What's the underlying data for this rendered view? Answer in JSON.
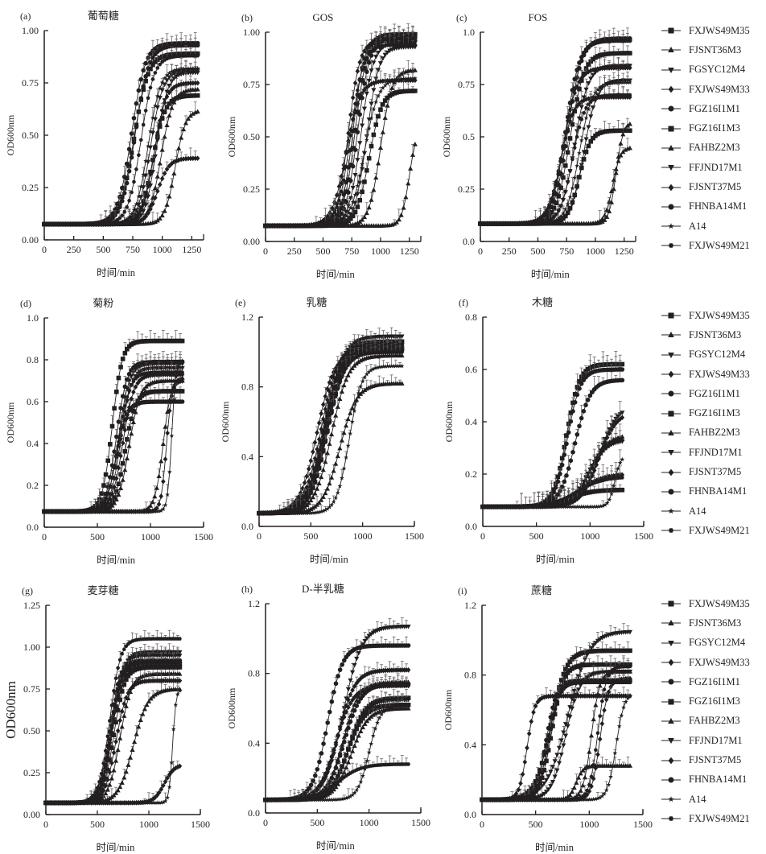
{
  "figure": {
    "legend_entries": [
      {
        "name": "FXJWS49M35",
        "marker": "square"
      },
      {
        "name": "FJSNT36M3",
        "marker": "triangle-up"
      },
      {
        "name": "FGSYC12M4",
        "marker": "triangle-down"
      },
      {
        "name": "FXJWS49M33",
        "marker": "diamond"
      },
      {
        "name": "FGZ16I1M1",
        "marker": "circle"
      },
      {
        "name": "FGZ16I1M3",
        "marker": "square"
      },
      {
        "name": "FAHBZ2M3",
        "marker": "triangle-up"
      },
      {
        "name": "FFJND17M1",
        "marker": "triangle-down"
      },
      {
        "name": "FJSNT37M5",
        "marker": "diamond"
      },
      {
        "name": "FHNBA14M1",
        "marker": "circle"
      },
      {
        "name": "A14",
        "marker": "star"
      },
      {
        "name": "FXJWS49M21",
        "marker": "hexagon"
      }
    ]
  },
  "chart_data": [
    {
      "type": "line",
      "panel": "(a)",
      "title": "葡萄糖",
      "xlabel": "时间/min",
      "ylabel": "OD600nm",
      "xlim": [
        0,
        1350
      ],
      "ylim": [
        0,
        1.0
      ],
      "xticks": [
        0,
        250,
        500,
        750,
        1000,
        1250
      ],
      "xtick_labels": [
        "0",
        "250",
        "500",
        "750",
        "1000",
        "1250"
      ],
      "yticks": [
        0,
        0.25,
        0.5,
        0.75,
        1.0
      ],
      "ytick_labels": [
        "0.00",
        "0.25",
        "0.50",
        "0.75",
        "1.00"
      ],
      "x_end": 1300,
      "baseline": 0.075,
      "series": [
        {
          "name": "FXJWS49M35",
          "max": 0.89,
          "mid": 760,
          "rate": 110
        },
        {
          "name": "FJSNT36M3",
          "max": 0.62,
          "mid": 1110,
          "rate": 80
        },
        {
          "name": "FGSYC12M4",
          "max": 0.81,
          "mid": 900,
          "rate": 95
        },
        {
          "name": "FXJWS49M33",
          "max": 0.39,
          "mid": 960,
          "rate": 90
        },
        {
          "name": "FGZ16I1M1",
          "max": 0.94,
          "mid": 740,
          "rate": 105
        },
        {
          "name": "FGZ16I1M3",
          "max": 0.69,
          "mid": 920,
          "rate": 95
        },
        {
          "name": "FAHBZ2M3",
          "max": 0.72,
          "mid": 990,
          "rate": 90
        },
        {
          "name": "FFJND17M1",
          "max": 0.8,
          "mid": 950,
          "rate": 85
        },
        {
          "name": "FJSNT37M5",
          "max": 0.75,
          "mid": 930,
          "rate": 90
        },
        {
          "name": "FHNBA14M1",
          "max": 0.93,
          "mid": 770,
          "rate": 105
        },
        {
          "name": "A14",
          "max": 0.82,
          "mid": 880,
          "rate": 95
        },
        {
          "name": "FXJWS49M21",
          "max": 0.88,
          "mid": 820,
          "rate": 100
        }
      ]
    },
    {
      "type": "line",
      "panel": "(b)",
      "title": "GOS",
      "xlabel": "时间/min",
      "ylabel": "OD600nm",
      "xlim": [
        0,
        1350
      ],
      "ylim": [
        0,
        1.0
      ],
      "xticks": [
        0,
        250,
        500,
        750,
        1000,
        1250
      ],
      "xtick_labels": [
        "0",
        "250",
        "500",
        "750",
        "1000",
        "1250"
      ],
      "yticks": [
        0,
        0.25,
        0.5,
        0.75,
        1.0
      ],
      "ytick_labels": [
        "0.00",
        "0.25",
        "0.50",
        "0.75",
        "1.00"
      ],
      "x_end": 1300,
      "baseline": 0.075,
      "series": [
        {
          "name": "FXJWS49M35",
          "max": 0.99,
          "mid": 780,
          "rate": 95
        },
        {
          "name": "FJSNT36M3",
          "max": 0.55,
          "mid": 1250,
          "rate": 60
        },
        {
          "name": "FGSYC12M4",
          "max": 0.93,
          "mid": 880,
          "rate": 95
        },
        {
          "name": "FXJWS49M33",
          "max": 0.77,
          "mid": 700,
          "rate": 110
        },
        {
          "name": "FGZ16I1M1",
          "max": 0.98,
          "mid": 760,
          "rate": 90
        },
        {
          "name": "FGZ16I1M3",
          "max": 0.72,
          "mid": 900,
          "rate": 100
        },
        {
          "name": "FAHBZ2M3",
          "max": 0.82,
          "mid": 1000,
          "rate": 90
        },
        {
          "name": "FFJND17M1",
          "max": 0.95,
          "mid": 830,
          "rate": 95
        },
        {
          "name": "FJSNT37M5",
          "max": 0.96,
          "mid": 720,
          "rate": 90
        },
        {
          "name": "FHNBA14M1",
          "max": 0.97,
          "mid": 800,
          "rate": 95
        },
        {
          "name": "A14",
          "max": 0.78,
          "mid": 860,
          "rate": 110
        },
        {
          "name": "FXJWS49M21",
          "max": 0.94,
          "mid": 740,
          "rate": 100
        }
      ]
    },
    {
      "type": "line",
      "panel": "(c)",
      "title": "FOS",
      "xlabel": "时间/min",
      "ylabel": "OD600nm",
      "xlim": [
        0,
        1350
      ],
      "ylim": [
        0,
        1.0
      ],
      "xticks": [
        0,
        250,
        500,
        750,
        1000,
        1250
      ],
      "xtick_labels": [
        "0",
        "250",
        "500",
        "750",
        "1000",
        "1250"
      ],
      "yticks": [
        0,
        0.25,
        0.5,
        0.75,
        1.0
      ],
      "ytick_labels": [
        "0.0",
        "0.25",
        "0.5",
        "0.75",
        "1.0"
      ],
      "x_end": 1300,
      "baseline": 0.085,
      "series": [
        {
          "name": "FXJWS49M35",
          "max": 0.9,
          "mid": 780,
          "rate": 110
        },
        {
          "name": "FJSNT36M3",
          "max": 0.45,
          "mid": 1150,
          "rate": 60
        },
        {
          "name": "FGSYC12M4",
          "max": 0.77,
          "mid": 900,
          "rate": 100
        },
        {
          "name": "FXJWS49M33",
          "max": 0.69,
          "mid": 700,
          "rate": 100
        },
        {
          "name": "FGZ16I1M1",
          "max": 0.97,
          "mid": 760,
          "rate": 110
        },
        {
          "name": "FGZ16I1M3",
          "max": 0.53,
          "mid": 860,
          "rate": 90
        },
        {
          "name": "FAHBZ2M3",
          "max": 0.57,
          "mid": 1180,
          "rate": 55
        },
        {
          "name": "FFJND17M1",
          "max": 0.84,
          "mid": 820,
          "rate": 105
        },
        {
          "name": "FJSNT37M5",
          "max": 0.83,
          "mid": 720,
          "rate": 110
        },
        {
          "name": "FHNBA14M1",
          "max": 0.96,
          "mid": 740,
          "rate": 110
        },
        {
          "name": "A14",
          "max": 0.76,
          "mid": 860,
          "rate": 100
        },
        {
          "name": "FXJWS49M21",
          "max": 0.7,
          "mid": 800,
          "rate": 100
        }
      ]
    },
    {
      "type": "line",
      "panel": "(d)",
      "title": "菊粉",
      "xlabel": "时间/min",
      "ylabel": "OD600nm",
      "xlim": [
        0,
        1500
      ],
      "ylim": [
        0,
        1.0
      ],
      "xticks": [
        0,
        500,
        1000,
        1500
      ],
      "xtick_labels": [
        "0",
        "500",
        "1000",
        "1500"
      ],
      "yticks": [
        0,
        0.2,
        0.4,
        0.6,
        0.8,
        1.0
      ],
      "ytick_labels": [
        "0.0",
        "0.2",
        "0.4",
        "0.6",
        "0.8",
        "1.0"
      ],
      "x_end": 1300,
      "baseline": 0.075,
      "series": [
        {
          "name": "FXJWS49M35",
          "max": 0.89,
          "mid": 640,
          "rate": 85
        },
        {
          "name": "FJSNT36M3",
          "max": 0.72,
          "mid": 1120,
          "rate": 70
        },
        {
          "name": "FGSYC12M4",
          "max": 0.78,
          "mid": 700,
          "rate": 90
        },
        {
          "name": "FXJWS49M33",
          "max": 0.7,
          "mid": 1150,
          "rate": 45
        },
        {
          "name": "FGZ16I1M1",
          "max": 0.6,
          "mid": 680,
          "rate": 90
        },
        {
          "name": "FGZ16I1M3",
          "max": 0.65,
          "mid": 760,
          "rate": 90
        },
        {
          "name": "FAHBZ2M3",
          "max": 0.7,
          "mid": 800,
          "rate": 95
        },
        {
          "name": "FFJND17M1",
          "max": 0.76,
          "mid": 720,
          "rate": 90
        },
        {
          "name": "FJSNT37M5",
          "max": 0.73,
          "mid": 740,
          "rate": 95
        },
        {
          "name": "FHNBA14M1",
          "max": 0.79,
          "mid": 680,
          "rate": 90
        },
        {
          "name": "A14",
          "max": 0.8,
          "mid": 1200,
          "rate": 35
        },
        {
          "name": "FXJWS49M21",
          "max": 0.74,
          "mid": 700,
          "rate": 95
        }
      ]
    },
    {
      "type": "line",
      "panel": "(e)",
      "title": "乳糖",
      "xlabel": "时间/min",
      "ylabel": "OD600nm",
      "xlim": [
        0,
        1500
      ],
      "ylim": [
        0,
        1.2
      ],
      "xticks": [
        0,
        500,
        1000,
        1500
      ],
      "xtick_labels": [
        "0",
        "500",
        "1000",
        "1500"
      ],
      "yticks": [
        0,
        0.4,
        0.8,
        1.2
      ],
      "ytick_labels": [
        "0.0",
        "0.4",
        "0.8",
        "1.2"
      ],
      "x_end": 1380,
      "baseline": 0.075,
      "series": [
        {
          "name": "FXJWS49M35",
          "max": 1.06,
          "mid": 640,
          "rate": 150
        },
        {
          "name": "FJSNT36M3",
          "max": 0.82,
          "mid": 780,
          "rate": 150
        },
        {
          "name": "FGSYC12M4",
          "max": 1.03,
          "mid": 650,
          "rate": 150
        },
        {
          "name": "FXJWS49M33",
          "max": 1.0,
          "mid": 560,
          "rate": 150
        },
        {
          "name": "FGZ16I1M1",
          "max": 1.05,
          "mid": 630,
          "rate": 150
        },
        {
          "name": "FGZ16I1M3",
          "max": 1.02,
          "mid": 660,
          "rate": 150
        },
        {
          "name": "FAHBZ2M3",
          "max": 0.98,
          "mid": 700,
          "rate": 150
        },
        {
          "name": "FFJND17M1",
          "max": 1.09,
          "mid": 640,
          "rate": 160
        },
        {
          "name": "FJSNT37M5",
          "max": 1.04,
          "mid": 600,
          "rate": 150
        },
        {
          "name": "FHNBA14M1",
          "max": 1.01,
          "mid": 620,
          "rate": 150
        },
        {
          "name": "A14",
          "max": 0.92,
          "mid": 870,
          "rate": 110
        },
        {
          "name": "FXJWS49M21",
          "max": 1.0,
          "mid": 660,
          "rate": 150
        }
      ]
    },
    {
      "type": "line",
      "panel": "(f)",
      "title": "木糖",
      "xlabel": "时间/min",
      "ylabel": "OD600nm",
      "xlim": [
        0,
        1500
      ],
      "ylim": [
        0,
        0.8
      ],
      "xticks": [
        0,
        500,
        1000,
        1500
      ],
      "xtick_labels": [
        "0",
        "500",
        "1000",
        "1500"
      ],
      "yticks": [
        0,
        0.2,
        0.4,
        0.6,
        0.8
      ],
      "ytick_labels": [
        "0.0",
        "0.2",
        "0.4",
        "0.6",
        "0.8"
      ],
      "x_end": 1300,
      "baseline": 0.075,
      "series": [
        {
          "name": "FXJWS49M35",
          "max": 0.62,
          "mid": 780,
          "rate": 110
        },
        {
          "name": "FJSNT36M3",
          "max": 0.35,
          "mid": 1000,
          "rate": 150
        },
        {
          "name": "FGSYC12M4",
          "max": 0.33,
          "mid": 980,
          "rate": 150
        },
        {
          "name": "FXJWS49M33",
          "max": 0.2,
          "mid": 900,
          "rate": 200
        },
        {
          "name": "FGZ16I1M1",
          "max": 0.56,
          "mid": 860,
          "rate": 130
        },
        {
          "name": "FGZ16I1M3",
          "max": 0.14,
          "mid": 800,
          "rate": 200
        },
        {
          "name": "FAHBZ2M3",
          "max": 0.34,
          "mid": 1000,
          "rate": 150
        },
        {
          "name": "FFJND17M1",
          "max": 0.46,
          "mid": 1080,
          "rate": 150
        },
        {
          "name": "FJSNT37M5",
          "max": 0.44,
          "mid": 1080,
          "rate": 150
        },
        {
          "name": "FHNBA14M1",
          "max": 0.6,
          "mid": 790,
          "rate": 110
        },
        {
          "name": "A14",
          "max": 0.27,
          "mid": 1230,
          "rate": 50
        },
        {
          "name": "FXJWS49M21",
          "max": 0.19,
          "mid": 880,
          "rate": 220
        }
      ]
    },
    {
      "type": "line",
      "panel": "(g)",
      "title": "麦芽糖",
      "xlabel": "时间/min",
      "ylabel": "OD600nm",
      "xlim": [
        0,
        1500
      ],
      "ylim": [
        0,
        1.25
      ],
      "xticks": [
        0,
        500,
        1000,
        1500
      ],
      "xtick_labels": [
        "0",
        "500",
        "1000",
        "1500"
      ],
      "yticks": [
        0,
        0.25,
        0.5,
        0.75,
        1.0,
        1.25
      ],
      "ytick_labels": [
        "0.00",
        "0.25",
        "0.50",
        "0.75",
        "1.00",
        "1.25"
      ],
      "x_end": 1300,
      "baseline": 0.07,
      "series": [
        {
          "name": "FXJWS49M35",
          "max": 0.9,
          "mid": 640,
          "rate": 90
        },
        {
          "name": "FJSNT36M3",
          "max": 0.84,
          "mid": 720,
          "rate": 100
        },
        {
          "name": "FGSYC12M4",
          "max": 0.97,
          "mid": 650,
          "rate": 95
        },
        {
          "name": "FXJWS49M33",
          "max": 0.3,
          "mid": 1150,
          "rate": 90
        },
        {
          "name": "FGZ16I1M1",
          "max": 0.92,
          "mid": 620,
          "rate": 90
        },
        {
          "name": "FGZ16I1M3",
          "max": 0.88,
          "mid": 660,
          "rate": 95
        },
        {
          "name": "FAHBZ2M3",
          "max": 0.75,
          "mid": 850,
          "rate": 130
        },
        {
          "name": "FFJND17M1",
          "max": 0.95,
          "mid": 640,
          "rate": 90
        },
        {
          "name": "FJSNT37M5",
          "max": 0.8,
          "mid": 680,
          "rate": 100
        },
        {
          "name": "FHNBA14M1",
          "max": 0.91,
          "mid": 630,
          "rate": 90
        },
        {
          "name": "A14",
          "max": 0.75,
          "mid": 1230,
          "rate": 30
        },
        {
          "name": "FXJWS49M21",
          "max": 1.05,
          "mid": 620,
          "rate": 95
        }
      ]
    },
    {
      "type": "line",
      "panel": "(h)",
      "title": "D-半乳糖",
      "xlabel": "时间/min",
      "ylabel": "OD600nm",
      "xlim": [
        0,
        1500
      ],
      "ylim": [
        0,
        1.2
      ],
      "xticks": [
        0,
        500,
        1000,
        1500
      ],
      "xtick_labels": [
        "0",
        "500",
        "1000",
        "1500"
      ],
      "yticks": [
        0,
        0.4,
        0.8,
        1.2
      ],
      "ytick_labels": [
        "0.0",
        "0.4",
        "0.8",
        "1.2"
      ],
      "x_end": 1380,
      "baseline": 0.075,
      "series": [
        {
          "name": "FXJWS49M35",
          "max": 0.66,
          "mid": 800,
          "rate": 150
        },
        {
          "name": "FJSNT36M3",
          "max": 0.75,
          "mid": 750,
          "rate": 140
        },
        {
          "name": "FGSYC12M4",
          "max": 1.07,
          "mid": 750,
          "rate": 160
        },
        {
          "name": "FXJWS49M33",
          "max": 0.73,
          "mid": 680,
          "rate": 150
        },
        {
          "name": "FGZ16I1M1",
          "max": 0.74,
          "mid": 760,
          "rate": 150
        },
        {
          "name": "FGZ16I1M3",
          "max": 0.62,
          "mid": 790,
          "rate": 150
        },
        {
          "name": "FAHBZ2M3",
          "max": 0.6,
          "mid": 830,
          "rate": 150
        },
        {
          "name": "FFJND17M1",
          "max": 0.65,
          "mid": 800,
          "rate": 150
        },
        {
          "name": "FJSNT37M5",
          "max": 0.82,
          "mid": 700,
          "rate": 150
        },
        {
          "name": "FHNBA14M1",
          "max": 0.96,
          "mid": 600,
          "rate": 130
        },
        {
          "name": "A14",
          "max": 0.62,
          "mid": 1000,
          "rate": 100
        },
        {
          "name": "FXJWS49M21",
          "max": 0.28,
          "mid": 700,
          "rate": 200
        }
      ]
    },
    {
      "type": "line",
      "panel": "(i)",
      "title": "蔗糖",
      "xlabel": "时间/min",
      "ylabel": "OD600nm",
      "xlim": [
        0,
        1500
      ],
      "ylim": [
        0,
        1.2
      ],
      "xticks": [
        0,
        500,
        1000,
        1500
      ],
      "xtick_labels": [
        "0",
        "500",
        "1000",
        "1500"
      ],
      "yticks": [
        0,
        0.4,
        0.8,
        1.2
      ],
      "ytick_labels": [
        "0.0",
        "0.4",
        "0.8",
        "1.2"
      ],
      "x_end": 1380,
      "baseline": 0.085,
      "series": [
        {
          "name": "FXJWS49M35",
          "max": 0.94,
          "mid": 640,
          "rate": 130
        },
        {
          "name": "FJSNT36M3",
          "max": 0.82,
          "mid": 1020,
          "rate": 70
        },
        {
          "name": "FGSYC12M4",
          "max": 1.05,
          "mid": 800,
          "rate": 180
        },
        {
          "name": "FXJWS49M33",
          "max": 0.78,
          "mid": 1100,
          "rate": 70
        },
        {
          "name": "FGZ16I1M1",
          "max": 0.77,
          "mid": 600,
          "rate": 90
        },
        {
          "name": "FGZ16I1M3",
          "max": 0.86,
          "mid": 650,
          "rate": 100
        },
        {
          "name": "FAHBZ2M3",
          "max": 0.28,
          "mid": 880,
          "rate": 60
        },
        {
          "name": "FFJND17M1",
          "max": 0.82,
          "mid": 780,
          "rate": 120
        },
        {
          "name": "FJSNT37M5",
          "max": 0.68,
          "mid": 420,
          "rate": 65
        },
        {
          "name": "FHNBA14M1",
          "max": 0.76,
          "mid": 620,
          "rate": 90
        },
        {
          "name": "A14",
          "max": 0.7,
          "mid": 1250,
          "rate": 70
        },
        {
          "name": "FXJWS49M21",
          "max": 0.85,
          "mid": 1080,
          "rate": 70
        }
      ]
    }
  ]
}
